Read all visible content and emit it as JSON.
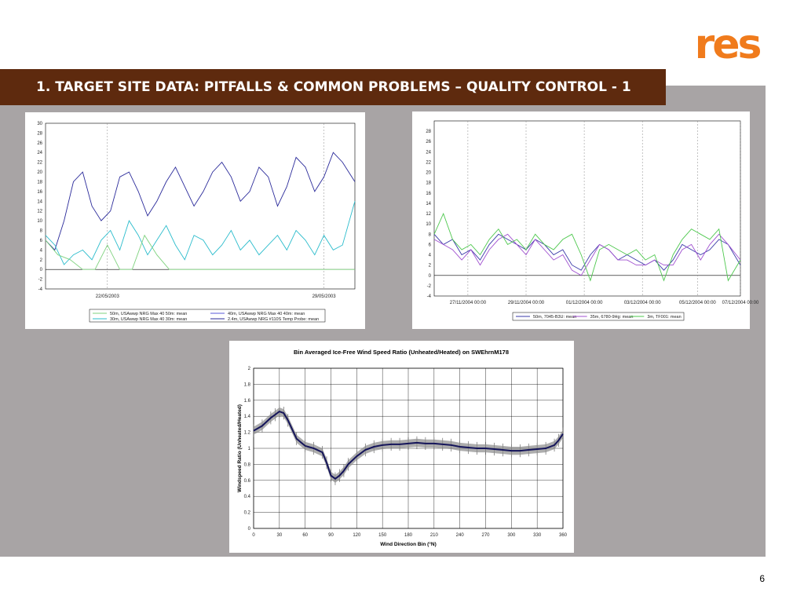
{
  "slide": {
    "title": "1.   TARGET SITE DATA: PITFALLS & COMMON PROBLEMS – QUALITY CONTROL - 1",
    "page_number": "6",
    "logo_text": "res",
    "colors": {
      "title_bar": "#5e2a0e",
      "panel": "#a8a4a5",
      "logo": "#f07b1c"
    }
  },
  "chart_data": [
    {
      "type": "line",
      "title": "",
      "xlabel": "",
      "ylabel": "",
      "ylim": [
        -4,
        30
      ],
      "yticks": [
        "30",
        "28",
        "26",
        "24",
        "22",
        "20",
        "18",
        "16",
        "14",
        "12",
        "10",
        "8",
        "6",
        "4",
        "2",
        "0",
        "-2",
        "-4"
      ],
      "xticks": [
        {
          "label": "22/05/2003",
          "x": 0.2
        },
        {
          "label": "29/05/2003",
          "x": 0.9
        }
      ],
      "legend": [
        {
          "name": "50m, USAwwp NRG Max 40 50m: mean",
          "color": "#7fd27f"
        },
        {
          "name": "40m, USAwwp NRG Max 40 40m: mean",
          "color": "#5a5ad8"
        },
        {
          "name": "30m, USAwwp NRG Max 40 30m: mean",
          "color": "#2bbccc"
        },
        {
          "name": "2.4m, USAwwp NRG #110S Temp Probe: mean",
          "color": "#2a2a9a"
        }
      ],
      "series": [
        {
          "name": "2.4m, USAwwp NRG #110S Temp Probe: mean",
          "color": "#2a2a9a",
          "x": [
            0.0,
            0.03,
            0.06,
            0.09,
            0.12,
            0.15,
            0.18,
            0.21,
            0.24,
            0.27,
            0.3,
            0.33,
            0.36,
            0.39,
            0.42,
            0.45,
            0.48,
            0.51,
            0.54,
            0.57,
            0.6,
            0.63,
            0.66,
            0.69,
            0.72,
            0.75,
            0.78,
            0.81,
            0.84,
            0.87,
            0.9,
            0.93,
            0.96,
            1.0
          ],
          "y": [
            6,
            4,
            10,
            18,
            20,
            13,
            10,
            12,
            19,
            20,
            16,
            11,
            14,
            18,
            21,
            17,
            13,
            16,
            20,
            22,
            19,
            14,
            16,
            21,
            19,
            13,
            17,
            23,
            21,
            16,
            19,
            24,
            22,
            18
          ]
        },
        {
          "name": "30m, USAwwp NRG Max 40 30m: mean",
          "color": "#2bbccc",
          "x": [
            0.0,
            0.03,
            0.06,
            0.09,
            0.12,
            0.15,
            0.18,
            0.21,
            0.24,
            0.27,
            0.3,
            0.33,
            0.36,
            0.39,
            0.42,
            0.45,
            0.48,
            0.51,
            0.54,
            0.57,
            0.6,
            0.63,
            0.66,
            0.69,
            0.72,
            0.75,
            0.78,
            0.81,
            0.84,
            0.87,
            0.9,
            0.93,
            0.96,
            1.0
          ],
          "y": [
            7,
            5,
            1,
            3,
            4,
            2,
            6,
            8,
            4,
            10,
            7,
            3,
            6,
            9,
            5,
            2,
            7,
            6,
            3,
            5,
            8,
            4,
            6,
            3,
            5,
            7,
            4,
            8,
            6,
            3,
            7,
            4,
            5,
            14
          ]
        },
        {
          "name": "50m, USAwwp NRG Max 40 50m: mean",
          "color": "#7fd27f",
          "x": [
            0.0,
            0.04,
            0.08,
            0.12,
            0.16,
            0.2,
            0.24,
            0.28,
            0.32,
            0.36,
            0.4,
            0.44,
            0.48,
            0.52,
            0.56,
            0.6,
            0.64,
            0.68,
            0.72,
            0.76,
            0.8,
            0.84,
            0.88,
            0.92,
            0.96,
            1.0
          ],
          "y": [
            6,
            3,
            2,
            0,
            0,
            5,
            0,
            0,
            7,
            3,
            0,
            0,
            0,
            0,
            0,
            0,
            0,
            0,
            0,
            0,
            0,
            0,
            0,
            0,
            0,
            0
          ]
        }
      ]
    },
    {
      "type": "line",
      "title": "",
      "xlabel": "",
      "ylabel": "",
      "ylim": [
        -4,
        30
      ],
      "yticks": [
        "28",
        "26",
        "24",
        "22",
        "20",
        "18",
        "16",
        "14",
        "12",
        "10",
        "8",
        "6",
        "4",
        "2",
        "0",
        "-2",
        "-4"
      ],
      "xticks": [
        {
          "label": "27/11/2004 00:00",
          "x": 0.11
        },
        {
          "label": "29/11/2004 00:00",
          "x": 0.3
        },
        {
          "label": "01/12/2004 00:00",
          "x": 0.49
        },
        {
          "label": "03/12/2004 00:00",
          "x": 0.68
        },
        {
          "label": "05/12/2004 00:00",
          "x": 0.86
        },
        {
          "label": "07/12/2004 00:00",
          "x": 1.0
        }
      ],
      "legend": [
        {
          "name": "50m, 7045-B3U: mean",
          "color": "#3a3aa8"
        },
        {
          "name": "35m, 6780-9Hg: mean",
          "color": "#a050d0"
        },
        {
          "name": "3m, TF001: mean",
          "color": "#4ec84e"
        }
      ],
      "series": [
        {
          "name": "50m, 7045-B3U: mean",
          "color": "#3a3aa8",
          "x": [
            0.0,
            0.03,
            0.06,
            0.09,
            0.12,
            0.15,
            0.18,
            0.21,
            0.24,
            0.27,
            0.3,
            0.33,
            0.36,
            0.39,
            0.42,
            0.45,
            0.48,
            0.51,
            0.54,
            0.57,
            0.6,
            0.63,
            0.66,
            0.69,
            0.72,
            0.75,
            0.78,
            0.81,
            0.84,
            0.87,
            0.9,
            0.93,
            0.96,
            1.0
          ],
          "y": [
            8,
            6,
            7,
            4,
            5,
            3,
            6,
            8,
            7,
            6,
            5,
            7,
            6,
            4,
            5,
            2,
            1,
            4,
            6,
            5,
            3,
            4,
            3,
            2,
            3,
            1,
            3,
            6,
            5,
            4,
            5,
            7,
            6,
            2
          ]
        },
        {
          "name": "35m, 6780-9Hg: mean",
          "color": "#a050d0",
          "x": [
            0.0,
            0.03,
            0.06,
            0.09,
            0.12,
            0.15,
            0.18,
            0.21,
            0.24,
            0.27,
            0.3,
            0.33,
            0.36,
            0.39,
            0.42,
            0.45,
            0.48,
            0.51,
            0.54,
            0.57,
            0.6,
            0.63,
            0.66,
            0.69,
            0.72,
            0.75,
            0.78,
            0.81,
            0.84,
            0.87,
            0.9,
            0.93,
            0.96,
            1.0
          ],
          "y": [
            7,
            6,
            5,
            3,
            5,
            2,
            5,
            7,
            8,
            6,
            4,
            7,
            5,
            3,
            4,
            1,
            0,
            3,
            6,
            5,
            3,
            3,
            2,
            2,
            3,
            2,
            2,
            5,
            6,
            3,
            6,
            8,
            6,
            3
          ]
        },
        {
          "name": "3m, TF001: mean",
          "color": "#4ec84e",
          "x": [
            0.0,
            0.03,
            0.06,
            0.09,
            0.12,
            0.15,
            0.18,
            0.21,
            0.24,
            0.27,
            0.3,
            0.33,
            0.36,
            0.39,
            0.42,
            0.45,
            0.48,
            0.51,
            0.54,
            0.57,
            0.6,
            0.63,
            0.66,
            0.69,
            0.72,
            0.75,
            0.78,
            0.81,
            0.84,
            0.87,
            0.9,
            0.93,
            0.96,
            1.0
          ],
          "y": [
            8,
            12,
            7,
            5,
            6,
            4,
            7,
            9,
            6,
            7,
            5,
            8,
            6,
            5,
            7,
            8,
            4,
            -1,
            5,
            6,
            5,
            4,
            5,
            3,
            4,
            -1,
            4,
            7,
            9,
            8,
            7,
            9,
            -1,
            3
          ]
        }
      ]
    },
    {
      "type": "line",
      "title": "Bin Averaged Ice-Free Wind Speed Ratio (Unheated/Heated) on SWEhrnM178",
      "xlabel": "Wind Direction Bin (°N)",
      "ylabel": "Windspeed Ratio (Unheated/Heated)",
      "xlim": [
        0,
        360
      ],
      "ylim": [
        0,
        2
      ],
      "xticks": [
        0,
        30,
        60,
        90,
        120,
        150,
        180,
        210,
        240,
        270,
        300,
        330,
        360
      ],
      "yticks": [
        0,
        0.2,
        0.4,
        0.6,
        0.8,
        1,
        1.2,
        1.4,
        1.6,
        1.8,
        2
      ],
      "grid": true,
      "series": [
        {
          "name": "",
          "color": "#14145a",
          "x": [
            0,
            10,
            20,
            25,
            30,
            35,
            40,
            50,
            60,
            70,
            80,
            85,
            90,
            95,
            100,
            105,
            110,
            120,
            130,
            140,
            150,
            160,
            170,
            180,
            190,
            200,
            210,
            220,
            230,
            240,
            250,
            260,
            270,
            280,
            290,
            300,
            310,
            320,
            330,
            340,
            350,
            355,
            360
          ],
          "y": [
            1.22,
            1.28,
            1.38,
            1.42,
            1.46,
            1.44,
            1.35,
            1.12,
            1.03,
            1.0,
            0.95,
            0.82,
            0.66,
            0.62,
            0.66,
            0.72,
            0.8,
            0.9,
            0.98,
            1.02,
            1.04,
            1.05,
            1.05,
            1.06,
            1.07,
            1.06,
            1.06,
            1.05,
            1.04,
            1.02,
            1.01,
            1.0,
            1.0,
            0.99,
            0.98,
            0.97,
            0.97,
            0.98,
            0.99,
            1.0,
            1.04,
            1.1,
            1.18
          ]
        }
      ]
    }
  ]
}
